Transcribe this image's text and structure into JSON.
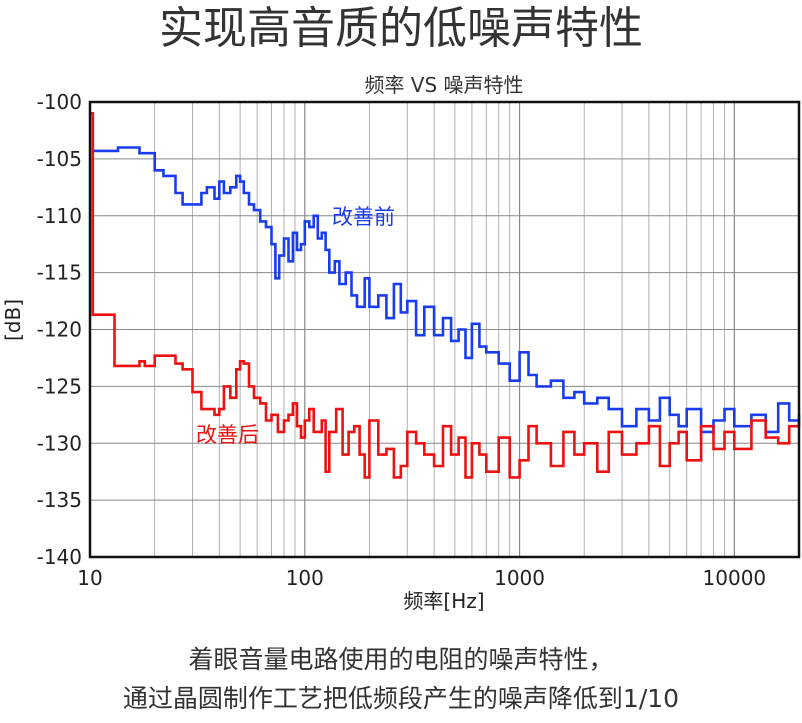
{
  "header": {
    "title": "实现高音质的低噪声特性"
  },
  "footer": {
    "line1": "着眼音量电路使用的电阻的噪声特性，",
    "line2": "通过晶圆制作工艺把低频段产生的噪声降低到1/10"
  },
  "chart_data": {
    "type": "line",
    "title": "频率 VS 噪声特性",
    "xlabel": "频率[Hz]",
    "ylabel": "[dB]",
    "x_scale": "log",
    "xlim": [
      10,
      20000
    ],
    "ylim": [
      -140,
      -100
    ],
    "x_ticks": [
      "10",
      "100",
      "1000",
      "10000"
    ],
    "x_tick_values": [
      10,
      100,
      1000,
      10000
    ],
    "y_ticks": [
      "-100",
      "-105",
      "-110",
      "-115",
      "-120",
      "-125",
      "-130",
      "-135",
      "-140"
    ],
    "y_tick_values": [
      -100,
      -105,
      -110,
      -115,
      -120,
      -125,
      -130,
      -135,
      -140
    ],
    "grid": true,
    "series": [
      {
        "name": "改善前",
        "color": "#1a3cf0",
        "x": [
          10,
          10.3,
          10.6,
          13,
          13.5,
          16,
          17,
          19,
          20,
          22,
          25,
          27,
          30,
          33,
          35,
          38,
          40,
          42,
          45,
          48,
          50,
          52,
          55,
          58,
          62,
          66,
          70,
          73,
          76,
          80,
          84,
          88,
          92,
          96,
          100,
          105,
          110,
          115,
          120,
          125,
          130,
          138,
          145,
          155,
          165,
          175,
          190,
          200,
          220,
          240,
          260,
          280,
          300,
          330,
          360,
          400,
          440,
          480,
          520,
          560,
          600,
          650,
          700,
          800,
          900,
          1000,
          1100,
          1200,
          1400,
          1600,
          1800,
          2000,
          2300,
          2600,
          3000,
          3500,
          4000,
          4500,
          5000,
          5500,
          6000,
          7000,
          8000,
          9000,
          10000,
          12000,
          14000,
          16000,
          18000,
          20000
        ],
        "values": [
          -101,
          -104.3,
          -104.3,
          -104.3,
          -104,
          -104,
          -104.5,
          -104.5,
          -106,
          -106.5,
          -108,
          -109,
          -109,
          -108,
          -107.5,
          -108.5,
          -107,
          -108,
          -107.5,
          -106.5,
          -107,
          -108,
          -109,
          -109.5,
          -110.5,
          -111,
          -112.5,
          -115.5,
          -113.5,
          -112,
          -114,
          -111.5,
          -113,
          -112.5,
          -110.5,
          -111,
          -110,
          -112,
          -111.5,
          -113,
          -115,
          -114,
          -116,
          -115,
          -117,
          -118,
          -115.5,
          -118,
          -117,
          -119,
          -116,
          -118.5,
          -117.5,
          -120.5,
          -118,
          -120.5,
          -119,
          -121,
          -120,
          -122.5,
          -119.5,
          -121.5,
          -122,
          -123,
          -124.5,
          -122,
          -124,
          -125,
          -124.5,
          -126,
          -125.5,
          -126.5,
          -126,
          -127,
          -128.5,
          -127,
          -128,
          -126,
          -127.5,
          -128.5,
          -127,
          -129,
          -128,
          -127,
          -128.5,
          -127.5,
          -129,
          -126.5,
          -128,
          -127.5
        ]
      },
      {
        "name": "改善后",
        "color": "#ee1111",
        "x": [
          10,
          10.3,
          10.6,
          12.5,
          13,
          15,
          17,
          18,
          20,
          22,
          25,
          27,
          30,
          33,
          35,
          38,
          40,
          42,
          45,
          48,
          50,
          52,
          55,
          58,
          62,
          66,
          70,
          75,
          80,
          84,
          88,
          92,
          96,
          100,
          105,
          110,
          120,
          125,
          130,
          140,
          150,
          160,
          170,
          180,
          190,
          200,
          220,
          240,
          260,
          280,
          300,
          330,
          360,
          400,
          440,
          480,
          520,
          560,
          600,
          650,
          700,
          800,
          900,
          1000,
          1100,
          1200,
          1400,
          1600,
          1800,
          2000,
          2300,
          2600,
          3000,
          3500,
          4000,
          4500,
          5000,
          5500,
          6000,
          7000,
          8000,
          9000,
          10000,
          12000,
          14000,
          16000,
          18000,
          20000
        ],
        "values": [
          -101,
          -118.7,
          -118.7,
          -118.7,
          -123.2,
          -123.2,
          -122.8,
          -123.2,
          -122.3,
          -122.3,
          -123,
          -123.5,
          -125.5,
          -127,
          -127,
          -127.5,
          -127,
          -125,
          -126,
          -123.5,
          -122.8,
          -123,
          -125,
          -126,
          -126.5,
          -128,
          -127.5,
          -129,
          -128,
          -127.5,
          -126.5,
          -128.5,
          -129.5,
          -128,
          -127,
          -129,
          -128,
          -132.5,
          -129,
          -127,
          -131,
          -129,
          -128.5,
          -131,
          -133,
          -128,
          -131,
          -130.5,
          -133,
          -132,
          -129,
          -130,
          -131,
          -132,
          -128.5,
          -131,
          -129.5,
          -133,
          -130,
          -131,
          -132.5,
          -129.5,
          -133,
          -131.5,
          -128.5,
          -130,
          -132,
          -129,
          -131,
          -130,
          -132.5,
          -129,
          -131,
          -130,
          -128.5,
          -132,
          -130,
          -129,
          -131.5,
          -128.5,
          -130.5,
          -129,
          -130.5,
          -128,
          -129.5,
          -130,
          -128.5,
          -128
        ]
      }
    ]
  }
}
